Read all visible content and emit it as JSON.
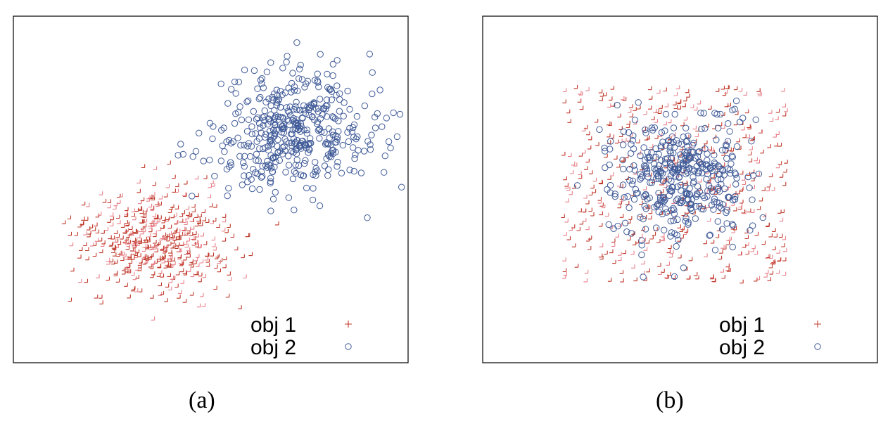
{
  "colors": {
    "obj1": "#c0392b",
    "obj1_light": "#e8808a",
    "obj2": "#3f5a98",
    "frame": "#000000"
  },
  "legend": {
    "obj1": "obj 1",
    "obj2": "obj 2"
  },
  "chart_data": [
    {
      "type": "scatter",
      "caption": "(a)",
      "xlim": [
        0,
        1
      ],
      "ylim": [
        0,
        1
      ],
      "grid": false,
      "legend_position": "bottom-right",
      "series": [
        {
          "name": "obj 1",
          "marker": "plus",
          "color": "#c0392b",
          "distribution": "gaussian",
          "count": 500,
          "mean": [
            0.36,
            0.34
          ],
          "std": [
            0.095,
            0.075
          ],
          "seed": 11
        },
        {
          "name": "obj 2",
          "marker": "circle",
          "color": "#3f5a98",
          "distribution": "gaussian",
          "count": 450,
          "mean": [
            0.71,
            0.67
          ],
          "std": [
            0.1,
            0.085
          ],
          "seed": 23
        }
      ]
    },
    {
      "type": "scatter",
      "caption": "(b)",
      "xlim": [
        0,
        1
      ],
      "ylim": [
        0,
        1
      ],
      "grid": false,
      "legend_position": "bottom-right",
      "series": [
        {
          "name": "obj 1",
          "marker": "plus",
          "color": "#c0392b",
          "distribution": "uniform",
          "count": 500,
          "x_range": [
            0.2,
            0.78
          ],
          "y_range": [
            0.22,
            0.8
          ],
          "seed": 37
        },
        {
          "name": "obj 2",
          "marker": "circle",
          "color": "#3f5a98",
          "distribution": "gaussian",
          "count": 400,
          "mean": [
            0.5,
            0.53
          ],
          "std": [
            0.09,
            0.085
          ],
          "seed": 53
        }
      ]
    }
  ]
}
